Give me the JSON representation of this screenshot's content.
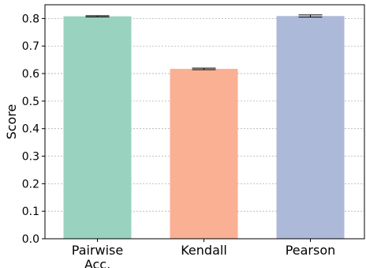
{
  "chart_data": {
    "type": "bar",
    "categories": [
      [
        "Pairwise",
        "Acc."
      ],
      [
        "Kendall"
      ],
      [
        "Pearson"
      ]
    ],
    "values": [
      0.808,
      0.617,
      0.809
    ],
    "errors": [
      0.002,
      0.003,
      0.004
    ],
    "colors": [
      "#99d3c0",
      "#f9b093",
      "#adb9d8"
    ],
    "ylabel": "Score",
    "ylim": [
      0,
      0.85
    ],
    "yticks": [
      "0.0",
      "0.1",
      "0.2",
      "0.3",
      "0.4",
      "0.5",
      "0.6",
      "0.7",
      "0.8"
    ],
    "grid": "y-dashed"
  }
}
